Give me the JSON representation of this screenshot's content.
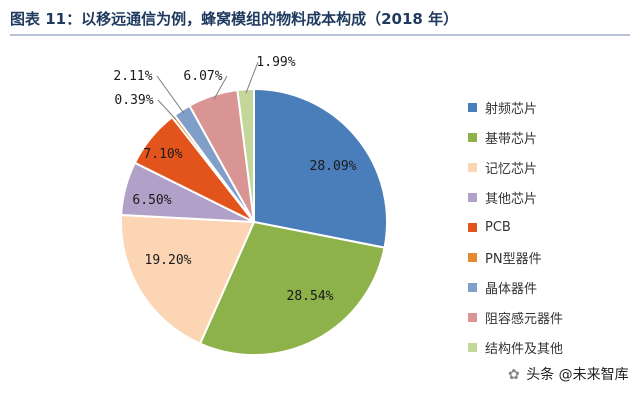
{
  "title": "图表 11：以移远通信为例，蜂窝模组的物料成本构成（2018 年）",
  "chart_data": {
    "type": "pie",
    "title": "图表 11：以移远通信为例，蜂窝模组的物料成本构成（2018 年）",
    "legend_position": "right",
    "start_angle_deg": 0,
    "direction": "clockwise",
    "slices": [
      {
        "label": "射频芯片",
        "value": 28.09,
        "value_label": "28.09%",
        "color": "#4a7ebb"
      },
      {
        "label": "基带芯片",
        "value": 28.54,
        "value_label": "28.54%",
        "color": "#8db24a"
      },
      {
        "label": "记忆芯片",
        "value": 19.2,
        "value_label": "19.20%",
        "color": "#fcd5b5"
      },
      {
        "label": "其他芯片",
        "value": 6.5,
        "value_label": "6.50%",
        "color": "#b1a0c7"
      },
      {
        "label": "PCB",
        "value": 7.1,
        "value_label": "7.10%",
        "color": "#e3541c"
      },
      {
        "label": "PN型器件",
        "value": 0.39,
        "value_label": "0.39%",
        "color": "#e58a2e"
      },
      {
        "label": "晶体器件",
        "value": 2.11,
        "value_label": "2.11%",
        "color": "#7f9fc8"
      },
      {
        "label": "阻容感元器件",
        "value": 6.07,
        "value_label": "6.07%",
        "color": "#d99594"
      },
      {
        "label": "结构件及其他",
        "value": 1.99,
        "value_label": "1.99%",
        "color": "#c4d79b"
      }
    ]
  },
  "watermark": {
    "prefix": "头条",
    "handle": "@未来智库",
    "logo_icon": "wechat-logo-icon"
  }
}
